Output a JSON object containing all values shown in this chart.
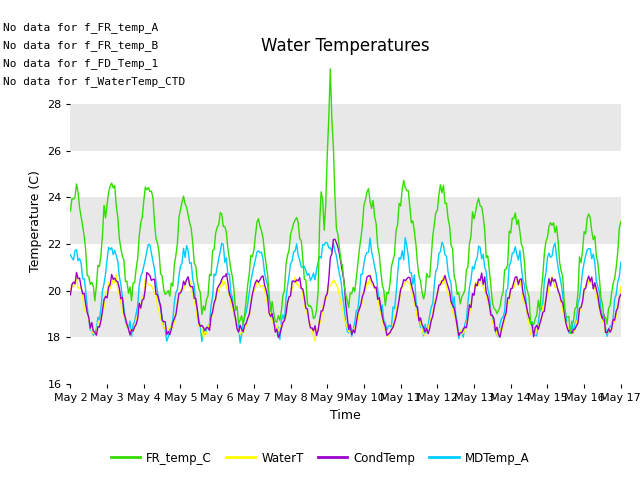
{
  "title": "Water Temperatures",
  "xlabel": "Time",
  "ylabel": "Temperature (C)",
  "ylim": [
    16,
    30
  ],
  "yticks": [
    16,
    18,
    20,
    22,
    24,
    26,
    28
  ],
  "xtick_labels": [
    "May 2",
    "May 3",
    "May 4",
    "May 5",
    "May 6",
    "May 7",
    "May 8",
    "May 9",
    "May 10",
    "May 11",
    "May 12",
    "May 13",
    "May 14",
    "May 15",
    "May 16",
    "May 17"
  ],
  "colors": {
    "FR_temp_C": "#33DD00",
    "WaterT": "#FFFF00",
    "CondTemp": "#9900CC",
    "MDTemp_A": "#00CCFF"
  },
  "no_data_texts": [
    "No data for f_FR_temp_A",
    "No data for f_FR_temp_B",
    "No data for f_FD_Temp_1",
    "No data for f_WaterTemp_CTD"
  ],
  "background_color": "#E8E8E8",
  "band_color_light": "#F2F2F2",
  "band_color_dark": "#E0E0E0",
  "title_fontsize": 12,
  "axis_fontsize": 9,
  "tick_fontsize": 8,
  "nodata_fontsize": 8
}
